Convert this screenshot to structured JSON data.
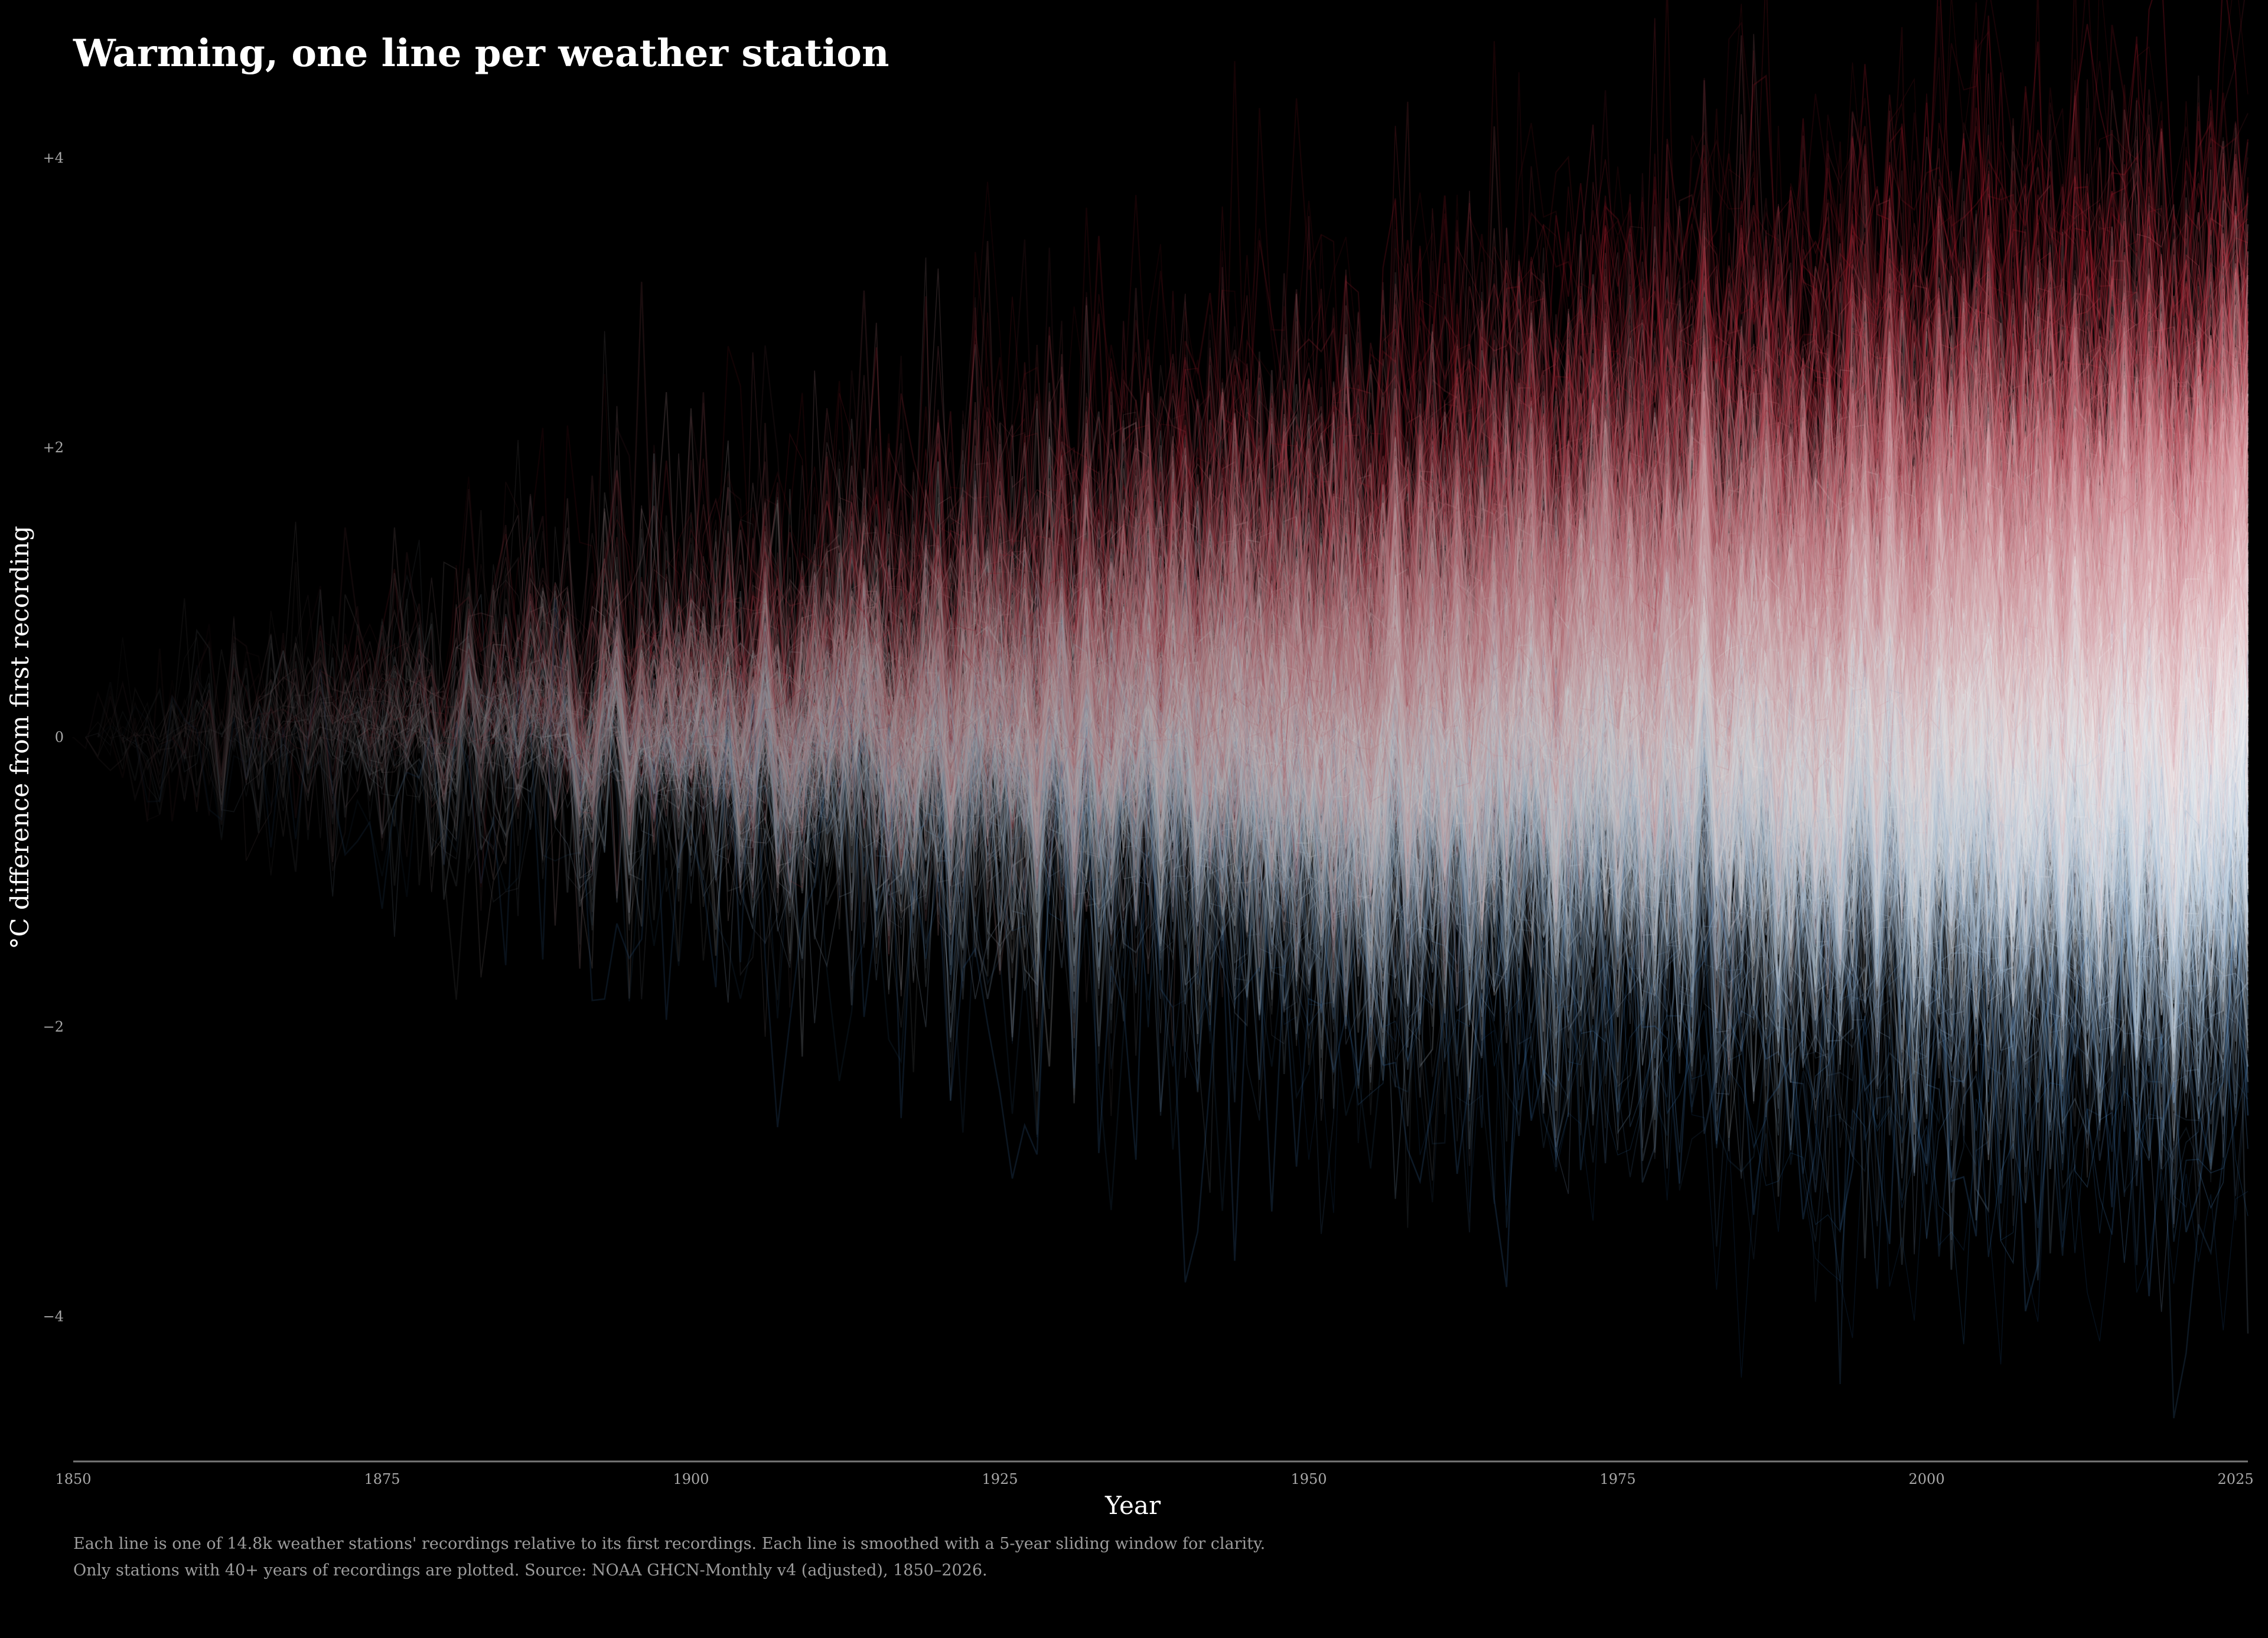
{
  "chart_data": {
    "type": "line",
    "title": "Warming, one line per weather station",
    "xlabel": "Year",
    "ylabel": "°C difference from first recording",
    "xlim": [
      1850,
      2026
    ],
    "ylim": [
      -5,
      5
    ],
    "x_ticks": [
      {
        "value": 1850,
        "label": "1850"
      },
      {
        "value": 1875,
        "label": "1875"
      },
      {
        "value": 1900,
        "label": "1900"
      },
      {
        "value": 1925,
        "label": "1925"
      },
      {
        "value": 1950,
        "label": "1950"
      },
      {
        "value": 1975,
        "label": "1975"
      },
      {
        "value": 2000,
        "label": "2000"
      },
      {
        "value": 2025,
        "label": "2025"
      }
    ],
    "y_ticks": [
      {
        "value": 4,
        "label": "+4"
      },
      {
        "value": 2,
        "label": "+2"
      },
      {
        "value": 0,
        "label": "0"
      },
      {
        "value": -2,
        "label": "−2"
      },
      {
        "value": -4,
        "label": "−4"
      }
    ],
    "grid": false,
    "legend": "none",
    "color_scale": {
      "positive": "#b2182b",
      "neutral": "#f7f7f7",
      "negative": "#2166ac"
    },
    "background": "#000000",
    "series_count_label": "14.8k",
    "smoothing_window_years": 5,
    "caption_lines": [
      "Each line is one of 14.8k weather stations' recordings relative to its first recordings. Each line is smoothed with a 5-year sliding window for clarity.",
      "Only stations with 40+ years of recordings are plotted. Source: NOAA GHCN-Monthly v4 (adjusted), 1850–2026."
    ]
  }
}
